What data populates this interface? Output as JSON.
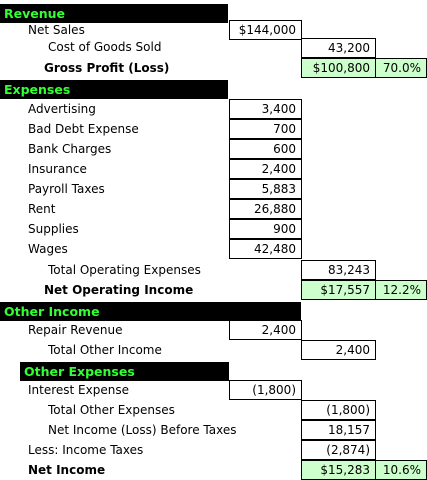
{
  "revenue": {
    "header": "Revenue",
    "net_sales_label": "Net Sales",
    "net_sales": "$144,000",
    "cogs_label": "Cost of Goods Sold",
    "cogs": "43,200",
    "gross_profit_label": "Gross Profit (Loss)",
    "gross_profit": "$100,800",
    "gross_profit_pct": "70.0%"
  },
  "expenses": {
    "header": "Expenses",
    "items": [
      {
        "label": "Advertising",
        "value": "3,400"
      },
      {
        "label": "Bad Debt Expense",
        "value": "700"
      },
      {
        "label": "Bank Charges",
        "value": "600"
      },
      {
        "label": "Insurance",
        "value": "2,400"
      },
      {
        "label": "Payroll Taxes",
        "value": "5,883"
      },
      {
        "label": "Rent",
        "value": "26,880"
      },
      {
        "label": "Supplies",
        "value": "900"
      },
      {
        "label": "Wages",
        "value": "42,480"
      }
    ],
    "total_label": "Total Operating Expenses",
    "total": "83,243",
    "noi_label": "Net Operating Income",
    "noi": "$17,557",
    "noi_pct": "12.2%"
  },
  "other_income": {
    "header": "Other Income",
    "repair_label": "Repair Revenue",
    "repair": "2,400",
    "total_label": "Total Other Income",
    "total": "2,400"
  },
  "other_expenses": {
    "header": "Other Expenses",
    "interest_label": "Interest Expense",
    "interest": "(1,800)",
    "total_label": "Total Other Expenses",
    "total": "(1,800)",
    "nibt_label": "Net Income (Loss) Before Taxes",
    "nibt": "18,157",
    "tax_label": "Less: Income Taxes",
    "tax": "(2,874)",
    "ni_label": "Net Income",
    "ni": "$15,283",
    "ni_pct": "10.6%"
  }
}
